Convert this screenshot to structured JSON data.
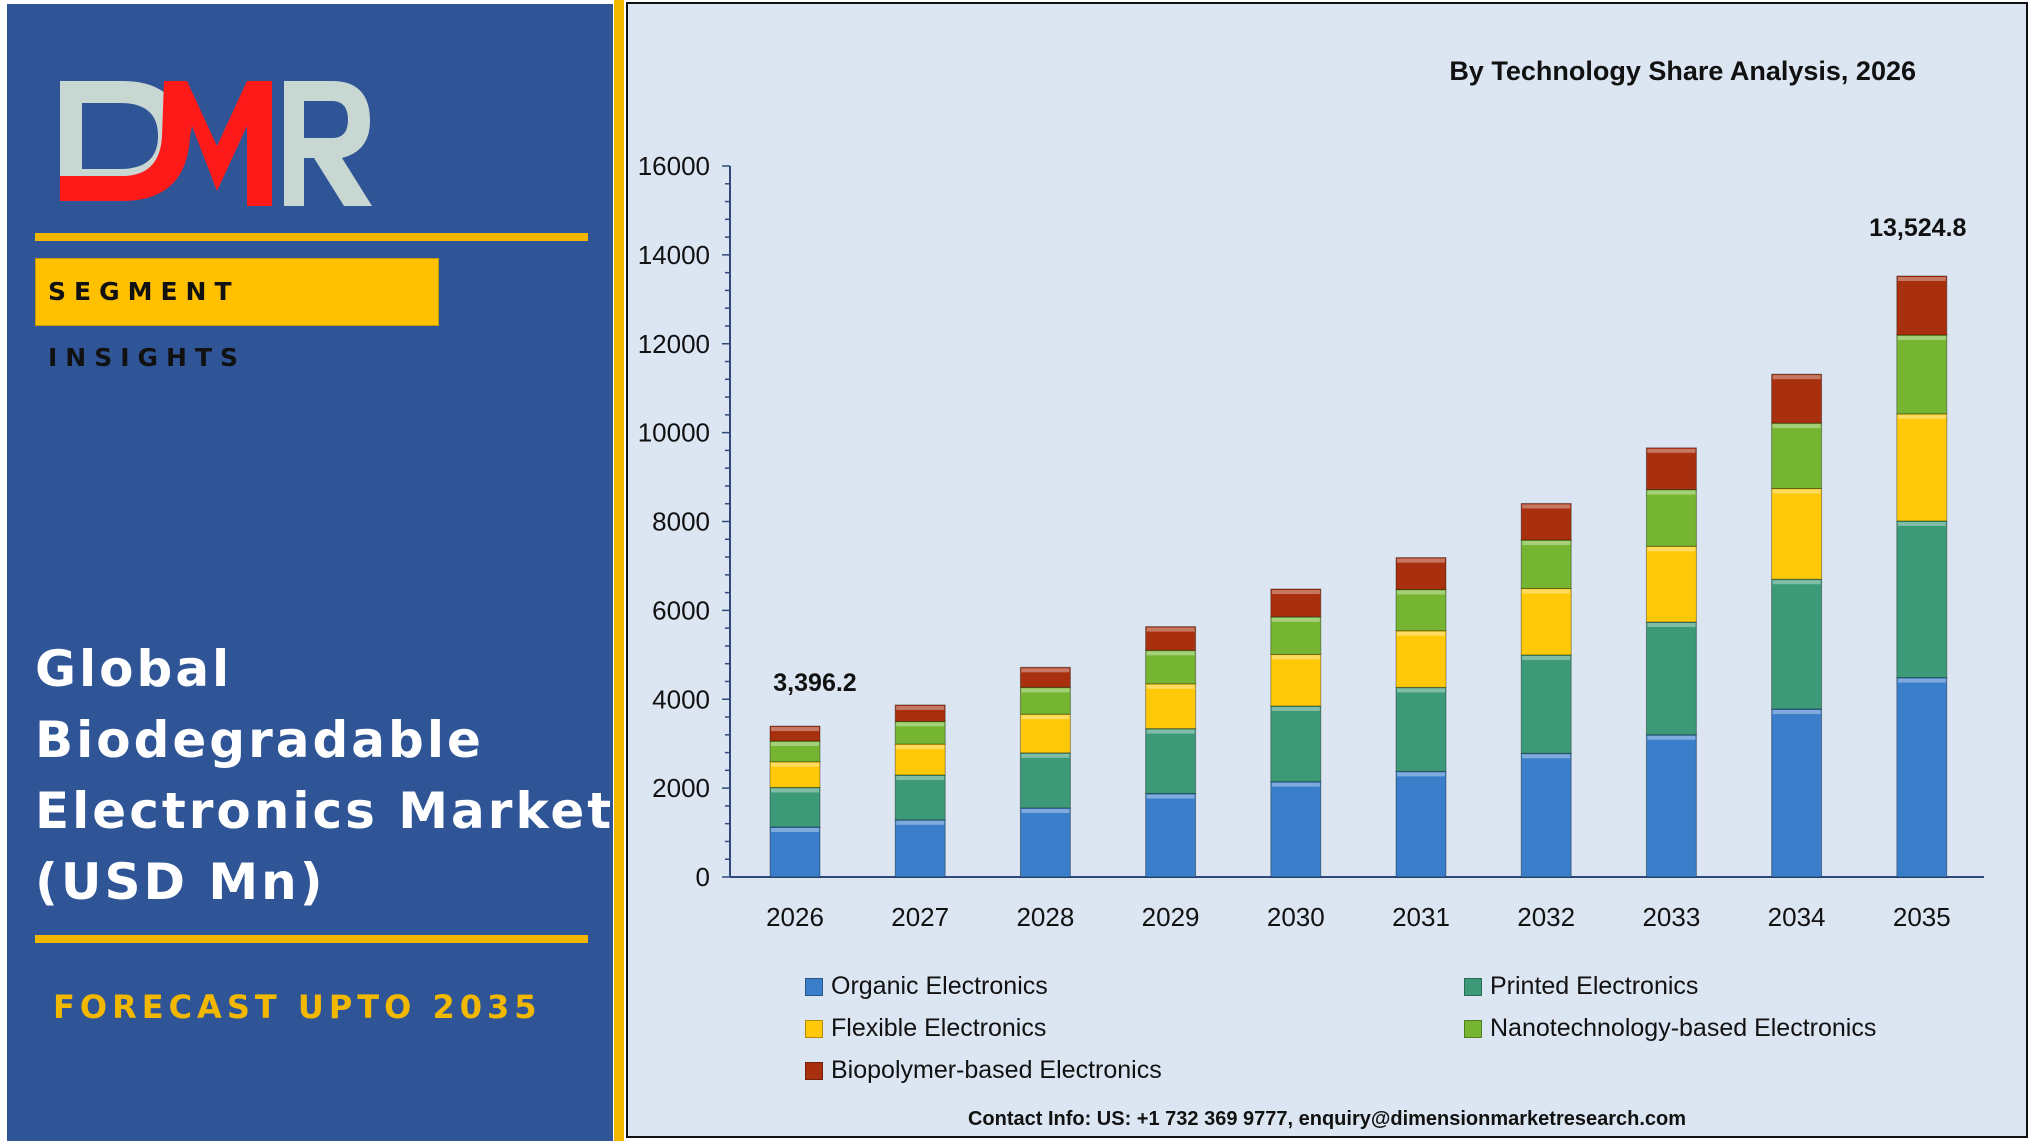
{
  "panel": {
    "logo_text": "DMR",
    "badge": "SEGMENT INSIGHTS",
    "title_lines": [
      "Global",
      "Biodegradable",
      "Electronics Market",
      "(USD Mn)"
    ],
    "forecast": "FORECAST UPTO 2035"
  },
  "colors": {
    "panel_bg": "#2f5597",
    "accent": "#f2b800",
    "chart_bg": "#dce6f2"
  },
  "chart_data": {
    "type": "bar",
    "stacked": true,
    "title": "By Technology Share Analysis, 2026",
    "categories": [
      "2026",
      "2027",
      "2028",
      "2029",
      "2030",
      "2031",
      "2032",
      "2033",
      "2034",
      "2035"
    ],
    "ylim": [
      0,
      16000
    ],
    "yticks": [
      0,
      2000,
      4000,
      6000,
      8000,
      10000,
      12000,
      14000,
      16000
    ],
    "grid": false,
    "legend_position": "bottom",
    "series": [
      {
        "name": "Organic Electronics",
        "color": "#3a7dc9",
        "values": [
          1125,
          1287,
          1554,
          1878,
          2145,
          2377,
          2783,
          3200,
          3780,
          4487
        ]
      },
      {
        "name": "Printed Electronics",
        "color": "#3d9a78",
        "values": [
          890,
          1009,
          1240,
          1461,
          1704,
          1890,
          2214,
          2539,
          2921,
          3525
        ]
      },
      {
        "name": "Flexible Electronics",
        "color": "#ffc90a",
        "values": [
          580,
          695,
          870,
          1009,
          1160,
          1275,
          1496,
          1704,
          2041,
          2411
        ]
      },
      {
        "name": "Nanotechnology-based Electronics",
        "color": "#76b531",
        "values": [
          465,
          510,
          603,
          753,
          846,
          928,
          1090,
          1276,
          1472,
          1774
        ]
      },
      {
        "name": "Biopolymer-based Electronics",
        "color": "#a8300f",
        "values": [
          336.2,
          371,
          452,
          534,
          626,
          718,
          823,
          939,
          1102,
          1327.8
        ]
      }
    ],
    "data_labels": [
      {
        "category": "2026",
        "text": "3,396.2"
      },
      {
        "category": "2035",
        "text": "13,524.8"
      }
    ]
  },
  "contact": "Contact Info: US: +1 732 369 9777, enquiry@dimensionmarketresearch.com"
}
